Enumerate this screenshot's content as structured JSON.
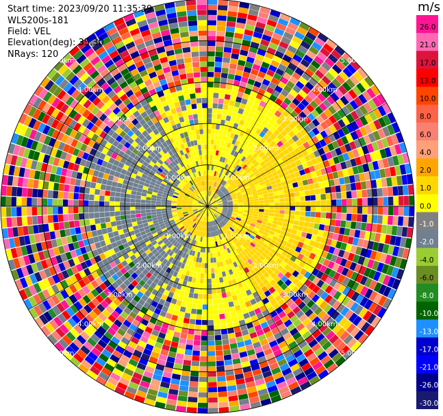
{
  "header": {
    "start_time": "Start time: 2023/09/20 11:35:39",
    "instrument": "WLS200s-181",
    "field": "Field: VEL",
    "elevation": "Elevation(deg): 35.30",
    "nrays": "NRays: 120"
  },
  "colorbar": {
    "unit": "m/s",
    "ticks": [
      "26.0",
      "21.0",
      "17.0",
      "13.0",
      "10.0",
      "8.0",
      "6.0",
      "4.0",
      "2.0",
      "1.0",
      "0.0",
      "-1.0",
      "-2.0",
      "-4.0",
      "-6.0",
      "-8.0",
      "-10.0",
      "-13.0",
      "-17.0",
      "-21.0",
      "-26.0",
      "-30.0"
    ],
    "colors": [
      "#ff1493",
      "#ff69b4",
      "#dc143c",
      "#ff0000",
      "#ff4500",
      "#ff6347",
      "#fa8072",
      "#ffa07a",
      "#ffa500",
      "#ffd700",
      "#ffff00",
      "#808080",
      "#708090",
      "#9acd32",
      "#6b8e23",
      "#228b22",
      "#006400",
      "#1e90ff",
      "#0000cd",
      "#0000ff",
      "#00008b",
      "#191970"
    ]
  },
  "chart_data": {
    "type": "ppi",
    "field": "VEL",
    "units": "m/s",
    "n_rays": 120,
    "elevation_deg": 35.3,
    "range_rings_km": [
      1.0,
      2.0,
      3.0,
      4.0,
      5.0
    ],
    "range_ring_labels": [
      "1.00km",
      "2.00km",
      "3.00km",
      "4.00km",
      "5.00km"
    ],
    "max_range_km": 5.0,
    "pattern": {
      "noise_beyond_km": 3.0,
      "approaching_sector_deg": [
        200,
        330
      ],
      "approaching_value": -1.5,
      "receding_sector_deg": [
        40,
        150
      ],
      "receding_value": 1.5,
      "near_zero_value": 0.0
    }
  }
}
